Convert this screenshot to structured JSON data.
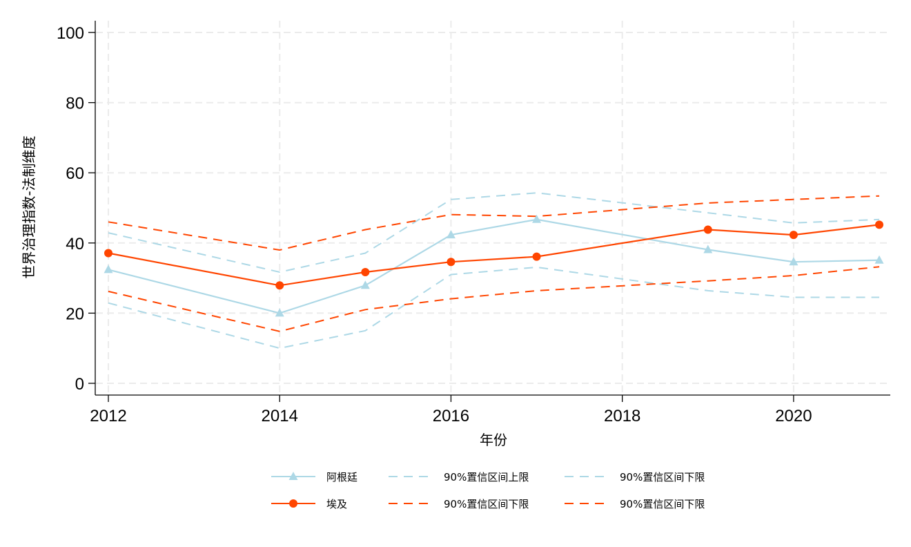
{
  "chart_data": {
    "type": "line",
    "xlabel": "年份",
    "ylabel": "世界治理指数-法制维度",
    "xlim": [
      2012,
      2021
    ],
    "ylim": [
      0,
      100
    ],
    "x_ticks": [
      2012,
      2014,
      2016,
      2018,
      2020
    ],
    "y_ticks": [
      0,
      20,
      40,
      60,
      80,
      100
    ],
    "x_tick_labels": [
      "2012",
      "2014",
      "2016",
      "2018",
      "2020"
    ],
    "y_tick_labels": [
      "0",
      "20",
      "40",
      "60",
      "80",
      "100"
    ],
    "grid": true,
    "legend_position": "bottom",
    "series": [
      {
        "name": "阿根廷",
        "color": "#add8e6",
        "style": "solid",
        "marker": "triangle",
        "points": [
          [
            2012,
            32.4
          ],
          [
            2014,
            20.0
          ],
          [
            2015,
            27.9
          ],
          [
            2016,
            42.3
          ],
          [
            2017,
            46.7
          ],
          [
            2019,
            38.1
          ],
          [
            2020,
            34.6
          ],
          [
            2021,
            35.1
          ]
        ]
      },
      {
        "name": "埃及",
        "color": "#ff4500",
        "style": "solid",
        "marker": "circle",
        "points": [
          [
            2012,
            37.1
          ],
          [
            2014,
            27.9
          ],
          [
            2015,
            31.7
          ],
          [
            2016,
            34.6
          ],
          [
            2017,
            36.1
          ],
          [
            2019,
            43.8
          ],
          [
            2020,
            42.3
          ],
          [
            2021,
            45.2
          ]
        ]
      },
      {
        "name": "90%置信区间上限",
        "color": "#add8e6",
        "style": "dashed",
        "marker": "none",
        "points": [
          [
            2012,
            42.9
          ],
          [
            2014,
            31.7
          ],
          [
            2015,
            37.1
          ],
          [
            2016,
            52.4
          ],
          [
            2017,
            54.3
          ],
          [
            2019,
            48.6
          ],
          [
            2020,
            45.7
          ],
          [
            2021,
            46.7
          ]
        ]
      },
      {
        "name": "90%置信区间下限",
        "color": "#ff4500",
        "style": "dashed",
        "marker": "none",
        "points": [
          [
            2012,
            46.0
          ],
          [
            2014,
            38.0
          ],
          [
            2015,
            43.8
          ],
          [
            2016,
            48.1
          ],
          [
            2017,
            47.6
          ],
          [
            2019,
            51.4
          ],
          [
            2020,
            52.4
          ],
          [
            2021,
            53.4
          ]
        ]
      },
      {
        "name": "90%置信区间下限",
        "color": "#add8e6",
        "style": "dashed",
        "marker": "none",
        "points": [
          [
            2012,
            22.9
          ],
          [
            2014,
            10.0
          ],
          [
            2015,
            15.0
          ],
          [
            2016,
            31.0
          ],
          [
            2017,
            33.1
          ],
          [
            2019,
            26.4
          ],
          [
            2020,
            24.5
          ],
          [
            2021,
            24.5
          ]
        ]
      },
      {
        "name": "90%置信区间下限",
        "color": "#ff4500",
        "style": "dashed",
        "marker": "none",
        "points": [
          [
            2012,
            26.2
          ],
          [
            2014,
            14.8
          ],
          [
            2015,
            21.0
          ],
          [
            2016,
            24.1
          ],
          [
            2017,
            26.4
          ],
          [
            2019,
            29.2
          ],
          [
            2020,
            30.7
          ],
          [
            2021,
            33.2
          ]
        ]
      }
    ]
  },
  "legend": {
    "rows": [
      [
        "阿根廷",
        "90%置信区间上限",
        "90%置信区间下限"
      ],
      [
        "埃及",
        "90%置信区间下限",
        "90%置信区间下限"
      ]
    ],
    "row_series": [
      [
        0,
        2,
        4
      ],
      [
        1,
        3,
        5
      ]
    ]
  }
}
